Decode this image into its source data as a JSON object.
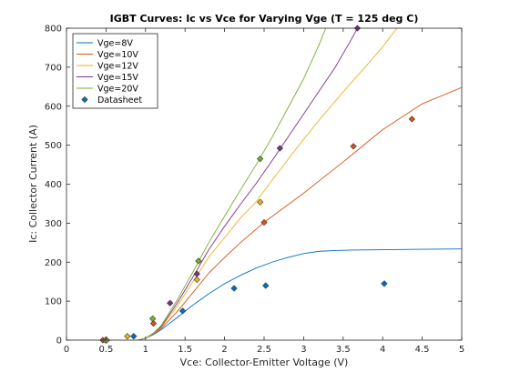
{
  "chart_data": {
    "type": "line",
    "title": "IGBT Curves: Ic vs Vce for Varying Vge  (T = 125 deg C)",
    "xlabel": "Vce: Collector-Emitter Voltage (V)",
    "ylabel": "Ic: Collector Current (A)",
    "xlim": [
      0,
      5
    ],
    "ylim": [
      0,
      800
    ],
    "xticks": [
      "0",
      "0.5",
      "1",
      "1.5",
      "2",
      "2.5",
      "3",
      "3.5",
      "4",
      "4.5",
      "5"
    ],
    "yticks": [
      "0",
      "100",
      "200",
      "300",
      "400",
      "500",
      "600",
      "700",
      "800"
    ],
    "grid": false,
    "legend_position": "top-left",
    "series": [
      {
        "name": "Vge=8V",
        "color": "#0072BD",
        "x": [
          0.0,
          0.9,
          1.0,
          1.1,
          1.2,
          1.4,
          1.6,
          1.8,
          2.0,
          2.2,
          2.4,
          2.6,
          2.8,
          3.0,
          3.2,
          3.4,
          3.6,
          4.0,
          4.5,
          5.0
        ],
        "y": [
          0,
          0,
          5,
          14,
          27,
          58,
          90,
          119,
          145,
          166,
          185,
          200,
          212,
          222,
          228,
          230,
          231,
          232,
          233,
          234
        ]
      },
      {
        "name": "Vge=10V",
        "color": "#D95319",
        "x": [
          0.0,
          0.9,
          1.0,
          1.1,
          1.2,
          1.4,
          1.6,
          1.8,
          2.0,
          2.2,
          2.5,
          3.0,
          3.5,
          4.0,
          4.5,
          5.0
        ],
        "y": [
          0,
          0,
          5,
          15,
          30,
          73,
          122,
          172,
          212,
          250,
          302,
          377,
          457,
          540,
          606,
          648
        ]
      },
      {
        "name": "Vge=12V",
        "color": "#EDB120",
        "x": [
          0.0,
          0.9,
          1.0,
          1.1,
          1.2,
          1.4,
          1.6,
          1.8,
          2.0,
          2.2,
          2.4,
          2.6,
          2.8,
          3.0,
          3.2,
          3.4,
          3.6,
          3.8,
          4.0,
          4.18
        ],
        "y": [
          0,
          0,
          5,
          16,
          33,
          87,
          150,
          213,
          263,
          313,
          355,
          410,
          463,
          515,
          565,
          613,
          660,
          705,
          752,
          800
        ]
      },
      {
        "name": "Vge=15V",
        "color": "#7E2F8E",
        "x": [
          0.0,
          0.9,
          1.0,
          1.1,
          1.2,
          1.4,
          1.6,
          1.8,
          2.0,
          2.2,
          2.4,
          2.6,
          2.8,
          3.0,
          3.2,
          3.4,
          3.6,
          3.68
        ],
        "y": [
          0,
          0,
          5,
          17,
          35,
          95,
          162,
          232,
          292,
          348,
          402,
          460,
          520,
          580,
          640,
          700,
          770,
          800
        ]
      },
      {
        "name": "Vge=20V",
        "color": "#77AC30",
        "x": [
          0.0,
          0.9,
          1.0,
          1.1,
          1.2,
          1.4,
          1.6,
          1.8,
          2.0,
          2.2,
          2.4,
          2.6,
          2.8,
          3.0,
          3.2,
          3.28
        ],
        "y": [
          0,
          0,
          5,
          18,
          38,
          103,
          175,
          250,
          318,
          385,
          450,
          520,
          595,
          670,
          760,
          800
        ]
      }
    ],
    "datasheet": {
      "name": "Datasheet",
      "points": [
        {
          "series": 0,
          "x": 0.5,
          "y": 0
        },
        {
          "series": 0,
          "x": 0.85,
          "y": 10
        },
        {
          "series": 0,
          "x": 1.47,
          "y": 75
        },
        {
          "series": 0,
          "x": 2.12,
          "y": 133
        },
        {
          "series": 0,
          "x": 2.52,
          "y": 140
        },
        {
          "series": 0,
          "x": 4.02,
          "y": 145
        },
        {
          "series": 1,
          "x": 0.46,
          "y": 0
        },
        {
          "series": 1,
          "x": 1.1,
          "y": 43
        },
        {
          "series": 1,
          "x": 2.5,
          "y": 302
        },
        {
          "series": 1,
          "x": 3.63,
          "y": 497
        },
        {
          "series": 1,
          "x": 4.37,
          "y": 567
        },
        {
          "series": 2,
          "x": 0.49,
          "y": 0
        },
        {
          "series": 2,
          "x": 0.77,
          "y": 10
        },
        {
          "series": 2,
          "x": 1.65,
          "y": 155
        },
        {
          "series": 2,
          "x": 2.45,
          "y": 354
        },
        {
          "series": 3,
          "x": 1.31,
          "y": 95
        },
        {
          "series": 3,
          "x": 1.65,
          "y": 170
        },
        {
          "series": 3,
          "x": 2.7,
          "y": 492
        },
        {
          "series": 3,
          "x": 3.68,
          "y": 800
        },
        {
          "series": 4,
          "x": 0.51,
          "y": 0
        },
        {
          "series": 4,
          "x": 1.09,
          "y": 55
        },
        {
          "series": 4,
          "x": 1.67,
          "y": 203
        },
        {
          "series": 4,
          "x": 2.45,
          "y": 465
        }
      ]
    }
  }
}
